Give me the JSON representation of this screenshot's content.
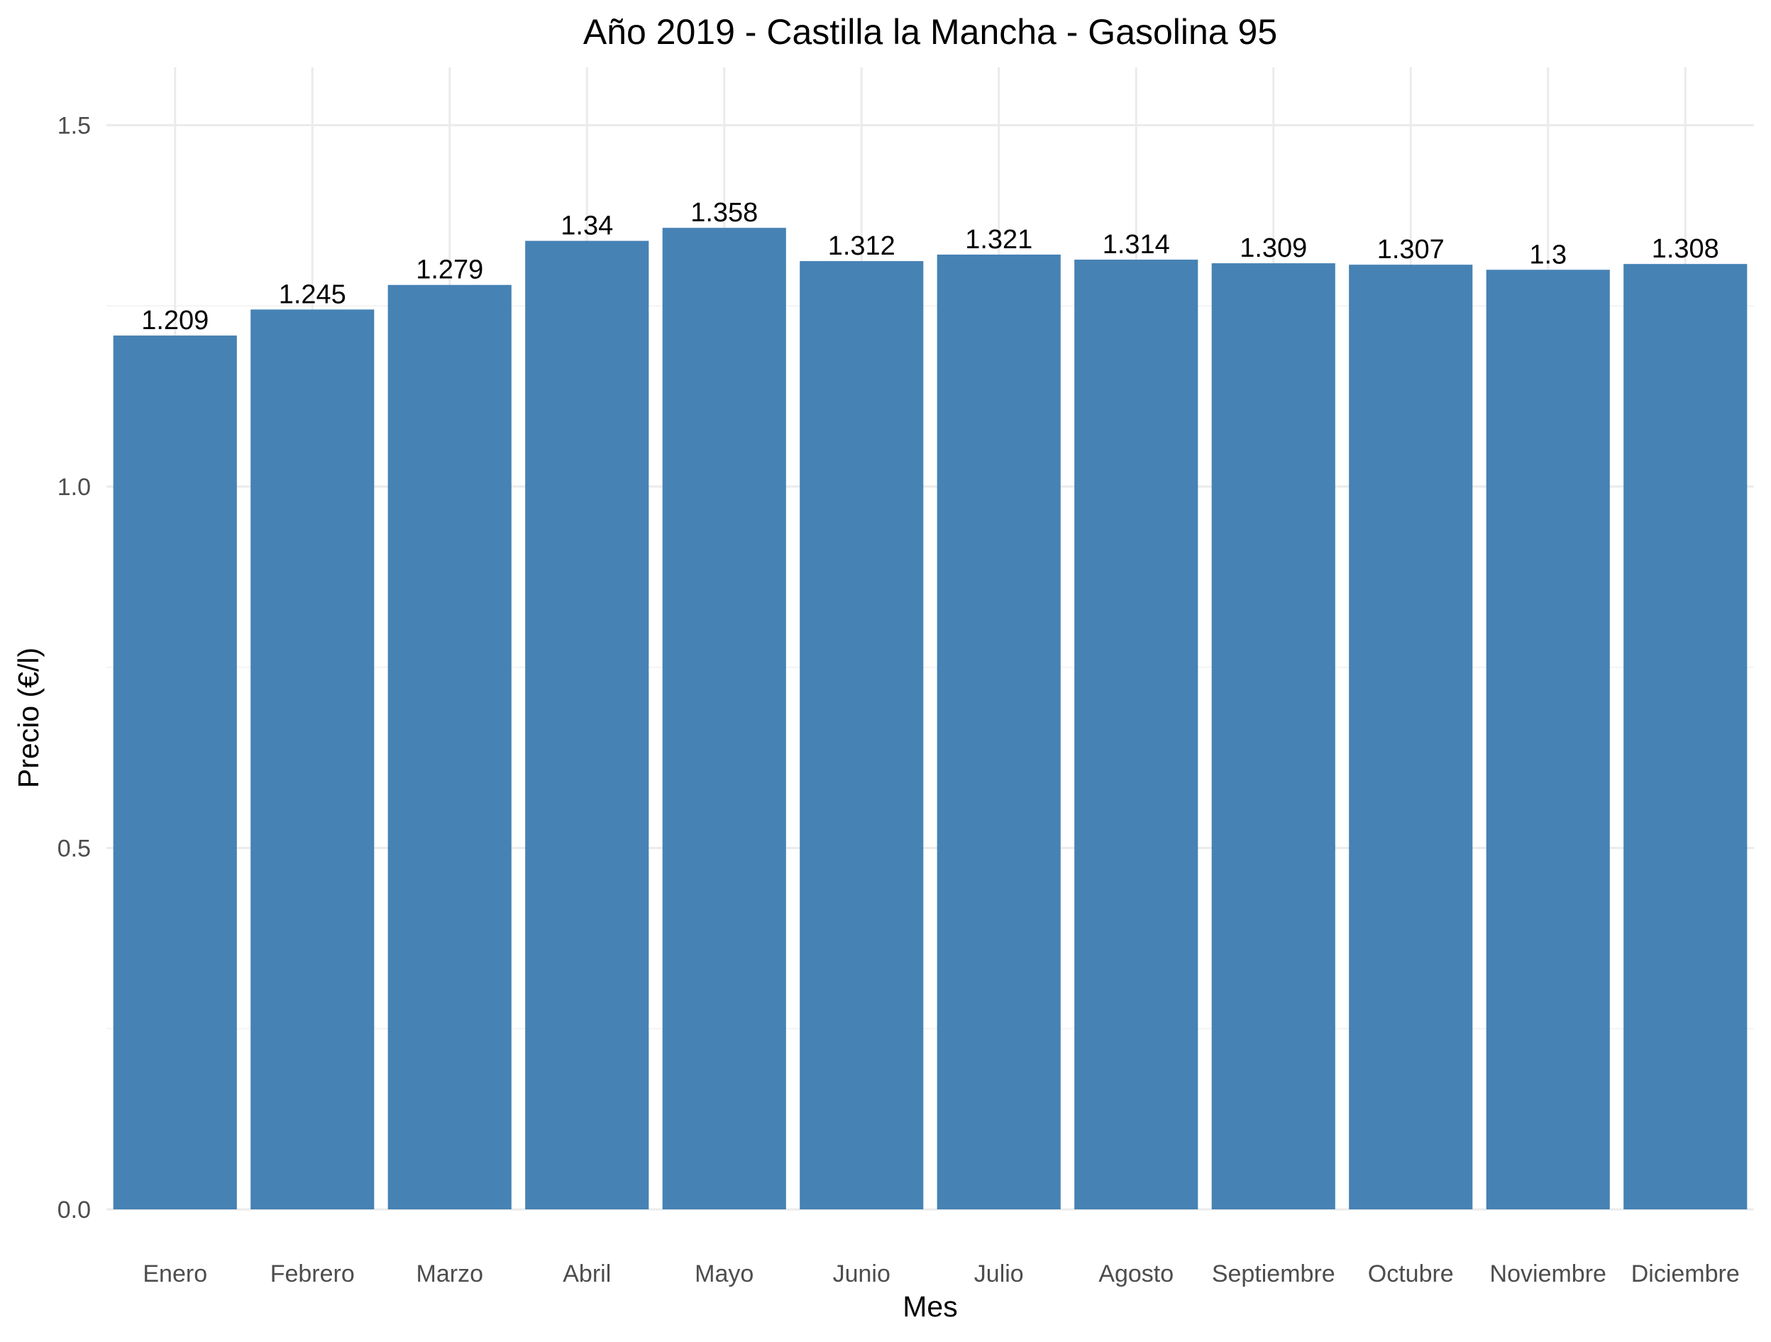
{
  "chart_data": {
    "type": "bar",
    "title": "Año 2019 - Castilla la Mancha - Gasolina 95",
    "xlabel": "Mes",
    "ylabel": "Precio (€/l)",
    "categories": [
      "Enero",
      "Febrero",
      "Marzo",
      "Abril",
      "Mayo",
      "Junio",
      "Julio",
      "Agosto",
      "Septiembre",
      "Octubre",
      "Noviembre",
      "Diciembre"
    ],
    "values": [
      1.209,
      1.245,
      1.279,
      1.34,
      1.358,
      1.312,
      1.321,
      1.314,
      1.309,
      1.307,
      1.3,
      1.308
    ],
    "value_labels": [
      "1.209",
      "1.245",
      "1.279",
      "1.34",
      "1.358",
      "1.312",
      "1.321",
      "1.314",
      "1.309",
      "1.307",
      "1.3",
      "1.308"
    ],
    "ylim": [
      0,
      1.58
    ],
    "y_ticks": [
      0,
      0.5,
      1.0,
      1.5
    ],
    "y_tick_labels": [
      "0.0",
      "0.5",
      "1.0",
      "1.5"
    ],
    "grid": true,
    "legend": "none",
    "bar_color": "#4682b4"
  }
}
